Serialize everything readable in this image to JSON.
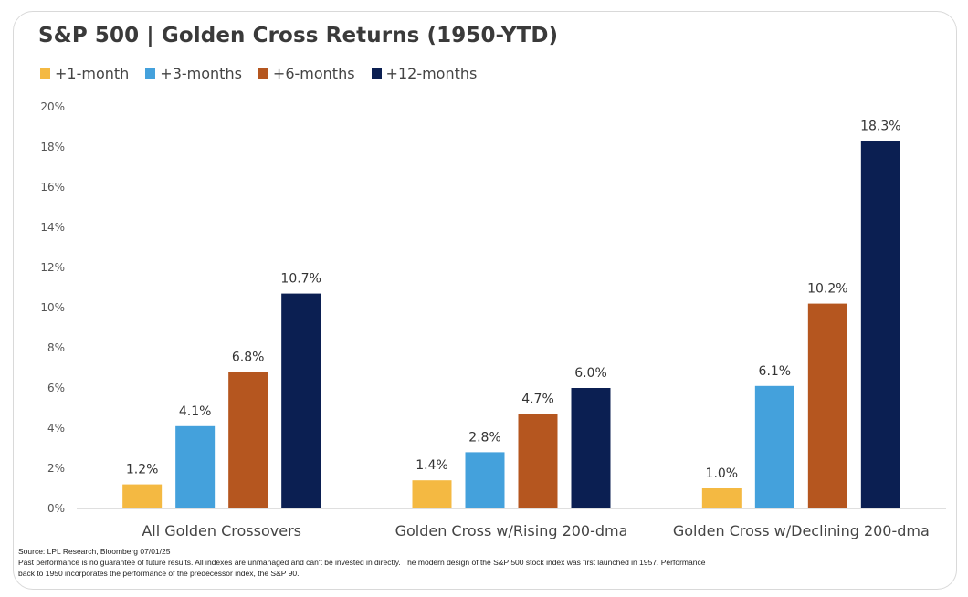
{
  "title": "S&P 500 | Golden Cross Returns (1950-YTD)",
  "chart_data": {
    "type": "bar",
    "title": "S&P 500 | Golden Cross Returns (1950-YTD)",
    "categories": [
      "All Golden Crossovers",
      "Golden Cross w/Rising 200-dma",
      "Golden Cross w/Declining 200-dma"
    ],
    "series": [
      {
        "name": "+1-month",
        "color": "#f4b942",
        "values": [
          1.2,
          1.4,
          1.0
        ],
        "labels": [
          "1.2%",
          "1.4%",
          "1.0%"
        ]
      },
      {
        "name": "+3-months",
        "color": "#44a1dc",
        "values": [
          4.1,
          2.8,
          6.1
        ],
        "labels": [
          "4.1%",
          "2.8%",
          "6.1%"
        ]
      },
      {
        "name": "+6-months",
        "color": "#b5561f",
        "values": [
          6.8,
          4.7,
          10.2
        ],
        "labels": [
          "6.8%",
          "4.7%",
          "10.2%"
        ]
      },
      {
        "name": "+12-months",
        "color": "#0b1f52",
        "values": [
          10.7,
          6.0,
          18.3
        ],
        "labels": [
          "10.7%",
          "6.0%",
          "18.3%"
        ]
      }
    ],
    "ylim": [
      0,
      20
    ],
    "yticks": [
      "0%",
      "2%",
      "4%",
      "6%",
      "8%",
      "10%",
      "12%",
      "14%",
      "16%",
      "18%",
      "20%"
    ],
    "grid": false,
    "legend_position": "top-left",
    "xlabel": "",
    "ylabel": ""
  },
  "footnotes": {
    "source": "Source: LPL Research, Bloomberg 07/01/25",
    "line1": "Past performance is no guarantee of future results. All indexes are unmanaged and can't be invested in directly. The modern design of the S&P 500 stock index was first launched in 1957. Performance",
    "line2": "back to 1950 incorporates the performance of the predecessor index, the S&P 90."
  }
}
